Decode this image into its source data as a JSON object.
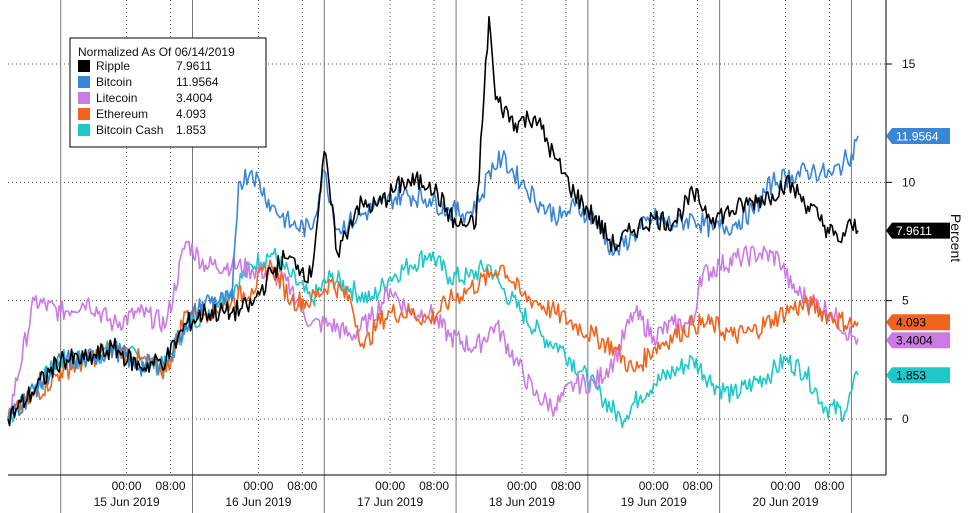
{
  "chart_data": {
    "type": "line",
    "legend_title": "Normalized As Of 06/14/2019",
    "legend_position": "top-left",
    "ylabel": "Percent",
    "ylim": [
      -2,
      17.5
    ],
    "yticks": [
      0,
      5,
      10,
      15
    ],
    "ytick_labels": [
      "0",
      "5",
      "10",
      "15"
    ],
    "grid": true,
    "xlim": [
      -0.4,
      6.1
    ],
    "xticks": [
      {
        "x": 0.5,
        "label": "00:00"
      },
      {
        "x": 0.8333,
        "label": "08:00"
      },
      {
        "x": 1.5,
        "label": "00:00"
      },
      {
        "x": 1.8333,
        "label": "08:00"
      },
      {
        "x": 2.5,
        "label": "00:00"
      },
      {
        "x": 2.8333,
        "label": "08:00"
      },
      {
        "x": 3.5,
        "label": "00:00"
      },
      {
        "x": 3.8333,
        "label": "08:00"
      },
      {
        "x": 4.5,
        "label": "00:00"
      },
      {
        "x": 4.8333,
        "label": "08:00"
      },
      {
        "x": 5.5,
        "label": "00:00"
      },
      {
        "x": 5.8333,
        "label": "08:00"
      }
    ],
    "days": [
      {
        "x": 0.5,
        "label": "15 Jun 2019"
      },
      {
        "x": 1.5,
        "label": "16 Jun 2019"
      },
      {
        "x": 2.5,
        "label": "17 Jun 2019"
      },
      {
        "x": 3.5,
        "label": "18 Jun 2019"
      },
      {
        "x": 4.5,
        "label": "19 Jun 2019"
      },
      {
        "x": 5.5,
        "label": "20 Jun 2019"
      }
    ],
    "x_unit": "days since 06/14/2019 00:00",
    "series": [
      {
        "name": "Ripple",
        "last": "7.9611",
        "color": "#000000",
        "points": [
          [
            -0.4,
            0.0
          ],
          [
            0.0,
            2.5
          ],
          [
            0.2,
            2.5
          ],
          [
            0.4,
            3.0
          ],
          [
            0.6,
            2.2
          ],
          [
            0.8,
            2.5
          ],
          [
            0.95,
            4.0
          ],
          [
            1.1,
            4.5
          ],
          [
            1.3,
            4.5
          ],
          [
            1.45,
            4.8
          ],
          [
            1.6,
            6.2
          ],
          [
            1.7,
            6.8
          ],
          [
            1.8,
            6.5
          ],
          [
            1.9,
            6.0
          ],
          [
            2.0,
            11.3
          ],
          [
            2.1,
            7.0
          ],
          [
            2.25,
            9.0
          ],
          [
            2.4,
            9.0
          ],
          [
            2.6,
            10.0
          ],
          [
            2.8,
            10.0
          ],
          [
            3.0,
            8.2
          ],
          [
            3.15,
            8.2
          ],
          [
            3.25,
            17.0
          ],
          [
            3.3,
            13.5
          ],
          [
            3.45,
            12.5
          ],
          [
            3.6,
            12.8
          ],
          [
            3.75,
            11.0
          ],
          [
            3.9,
            9.5
          ],
          [
            4.05,
            8.5
          ],
          [
            4.2,
            7.3
          ],
          [
            4.35,
            8.0
          ],
          [
            4.5,
            8.5
          ],
          [
            4.65,
            8.3
          ],
          [
            4.8,
            9.5
          ],
          [
            4.95,
            8.5
          ],
          [
            5.1,
            8.8
          ],
          [
            5.25,
            9.2
          ],
          [
            5.4,
            9.5
          ],
          [
            5.5,
            10.0
          ],
          [
            5.6,
            9.5
          ],
          [
            5.75,
            8.5
          ],
          [
            5.9,
            7.5
          ],
          [
            6.0,
            8.2
          ],
          [
            6.05,
            7.96
          ]
        ]
      },
      {
        "name": "Bitcoin",
        "last": "11.9564",
        "color": "#3a86d6",
        "points": [
          [
            -0.4,
            0.0
          ],
          [
            0.0,
            2.5
          ],
          [
            0.2,
            2.5
          ],
          [
            0.4,
            3.0
          ],
          [
            0.6,
            2.2
          ],
          [
            0.8,
            2.5
          ],
          [
            0.95,
            4.0
          ],
          [
            1.1,
            5.0
          ],
          [
            1.3,
            5.0
          ],
          [
            1.35,
            10.0
          ],
          [
            1.45,
            10.5
          ],
          [
            1.6,
            9.0
          ],
          [
            1.75,
            8.2
          ],
          [
            1.9,
            8.0
          ],
          [
            2.0,
            10.5
          ],
          [
            2.1,
            8.0
          ],
          [
            2.25,
            8.5
          ],
          [
            2.4,
            9.0
          ],
          [
            2.6,
            9.5
          ],
          [
            2.8,
            9.3
          ],
          [
            2.95,
            8.8
          ],
          [
            3.1,
            8.7
          ],
          [
            3.2,
            9.5
          ],
          [
            3.25,
            10.5
          ],
          [
            3.35,
            11.0
          ],
          [
            3.5,
            10.0
          ],
          [
            3.65,
            9.0
          ],
          [
            3.8,
            8.5
          ],
          [
            3.9,
            9.0
          ],
          [
            4.05,
            8.5
          ],
          [
            4.2,
            7.0
          ],
          [
            4.35,
            7.8
          ],
          [
            4.5,
            8.5
          ],
          [
            4.65,
            8.2
          ],
          [
            4.8,
            8.5
          ],
          [
            4.95,
            8.0
          ],
          [
            5.1,
            8.2
          ],
          [
            5.25,
            8.8
          ],
          [
            5.4,
            10.0
          ],
          [
            5.55,
            10.3
          ],
          [
            5.7,
            10.5
          ],
          [
            5.85,
            10.3
          ],
          [
            6.0,
            11.2
          ],
          [
            6.05,
            11.96
          ]
        ]
      },
      {
        "name": "Litecoin",
        "last": "3.4004",
        "color": "#cc7ae6",
        "points": [
          [
            -0.4,
            0.0
          ],
          [
            -0.2,
            5.0
          ],
          [
            0.0,
            4.5
          ],
          [
            0.2,
            5.0
          ],
          [
            0.4,
            4.0
          ],
          [
            0.6,
            4.5
          ],
          [
            0.8,
            4.0
          ],
          [
            0.95,
            7.5
          ],
          [
            1.1,
            6.5
          ],
          [
            1.3,
            6.5
          ],
          [
            1.45,
            6.3
          ],
          [
            1.6,
            6.2
          ],
          [
            1.75,
            5.5
          ],
          [
            1.9,
            4.0
          ],
          [
            2.05,
            4.0
          ],
          [
            2.2,
            3.5
          ],
          [
            2.35,
            4.2
          ],
          [
            2.5,
            5.5
          ],
          [
            2.65,
            4.5
          ],
          [
            2.8,
            4.5
          ],
          [
            2.95,
            3.5
          ],
          [
            3.15,
            3.0
          ],
          [
            3.3,
            4.0
          ],
          [
            3.45,
            2.5
          ],
          [
            3.6,
            1.0
          ],
          [
            3.75,
            0.5
          ],
          [
            3.9,
            1.5
          ],
          [
            4.05,
            1.5
          ],
          [
            4.2,
            2.5
          ],
          [
            4.35,
            4.5
          ],
          [
            4.5,
            3.5
          ],
          [
            4.65,
            4.0
          ],
          [
            4.8,
            4.0
          ],
          [
            4.85,
            6.0
          ],
          [
            5.0,
            6.5
          ],
          [
            5.15,
            6.8
          ],
          [
            5.3,
            7.0
          ],
          [
            5.45,
            6.8
          ],
          [
            5.55,
            5.5
          ],
          [
            5.7,
            5.0
          ],
          [
            5.85,
            4.5
          ],
          [
            6.0,
            3.5
          ],
          [
            6.05,
            3.4
          ]
        ]
      },
      {
        "name": "Ethereum",
        "last": "4.093",
        "color": "#f0641e",
        "points": [
          [
            -0.4,
            0.0
          ],
          [
            0.0,
            2.0
          ],
          [
            0.2,
            2.5
          ],
          [
            0.4,
            3.0
          ],
          [
            0.6,
            2.5
          ],
          [
            0.8,
            2.0
          ],
          [
            0.95,
            4.5
          ],
          [
            1.1,
            4.5
          ],
          [
            1.3,
            5.0
          ],
          [
            1.45,
            5.5
          ],
          [
            1.6,
            6.5
          ],
          [
            1.75,
            5.0
          ],
          [
            1.9,
            5.0
          ],
          [
            2.05,
            5.8
          ],
          [
            2.2,
            5.0
          ],
          [
            2.3,
            3.0
          ],
          [
            2.4,
            4.0
          ],
          [
            2.5,
            4.5
          ],
          [
            2.65,
            4.5
          ],
          [
            2.8,
            4.2
          ],
          [
            2.95,
            5.0
          ],
          [
            3.1,
            5.5
          ],
          [
            3.25,
            6.0
          ],
          [
            3.35,
            6.5
          ],
          [
            3.5,
            5.2
          ],
          [
            3.6,
            5.0
          ],
          [
            3.75,
            4.5
          ],
          [
            3.9,
            4.0
          ],
          [
            4.05,
            3.5
          ],
          [
            4.2,
            3.0
          ],
          [
            4.35,
            2.0
          ],
          [
            4.5,
            3.0
          ],
          [
            4.65,
            3.5
          ],
          [
            4.8,
            4.0
          ],
          [
            4.95,
            4.0
          ],
          [
            5.1,
            3.5
          ],
          [
            5.25,
            3.7
          ],
          [
            5.4,
            4.2
          ],
          [
            5.55,
            4.7
          ],
          [
            5.7,
            4.8
          ],
          [
            5.85,
            4.3
          ],
          [
            6.0,
            4.0
          ],
          [
            6.05,
            4.09
          ]
        ]
      },
      {
        "name": "Bitcoin Cash",
        "last": "1.853",
        "color": "#1ec8c8",
        "points": [
          [
            -0.4,
            0.0
          ],
          [
            0.0,
            2.5
          ],
          [
            0.2,
            2.5
          ],
          [
            0.4,
            3.0
          ],
          [
            0.6,
            2.5
          ],
          [
            0.8,
            2.2
          ],
          [
            0.95,
            4.0
          ],
          [
            1.1,
            4.5
          ],
          [
            1.3,
            5.5
          ],
          [
            1.45,
            6.5
          ],
          [
            1.6,
            7.0
          ],
          [
            1.75,
            6.0
          ],
          [
            1.9,
            5.0
          ],
          [
            2.05,
            6.0
          ],
          [
            2.2,
            5.5
          ],
          [
            2.35,
            5.0
          ],
          [
            2.5,
            6.0
          ],
          [
            2.65,
            6.5
          ],
          [
            2.8,
            7.0
          ],
          [
            2.95,
            6.0
          ],
          [
            3.1,
            6.0
          ],
          [
            3.25,
            6.5
          ],
          [
            3.35,
            5.5
          ],
          [
            3.5,
            4.5
          ],
          [
            3.65,
            3.5
          ],
          [
            3.8,
            3.0
          ],
          [
            3.95,
            2.0
          ],
          [
            4.1,
            1.0
          ],
          [
            4.25,
            0.0
          ],
          [
            4.4,
            1.0
          ],
          [
            4.5,
            1.5
          ],
          [
            4.65,
            2.0
          ],
          [
            4.8,
            2.5
          ],
          [
            4.95,
            1.5
          ],
          [
            5.1,
            1.0
          ],
          [
            5.25,
            1.5
          ],
          [
            5.4,
            2.0
          ],
          [
            5.5,
            2.5
          ],
          [
            5.65,
            2.0
          ],
          [
            5.8,
            0.5
          ],
          [
            5.95,
            0.3
          ],
          [
            6.05,
            1.85
          ]
        ]
      }
    ]
  }
}
